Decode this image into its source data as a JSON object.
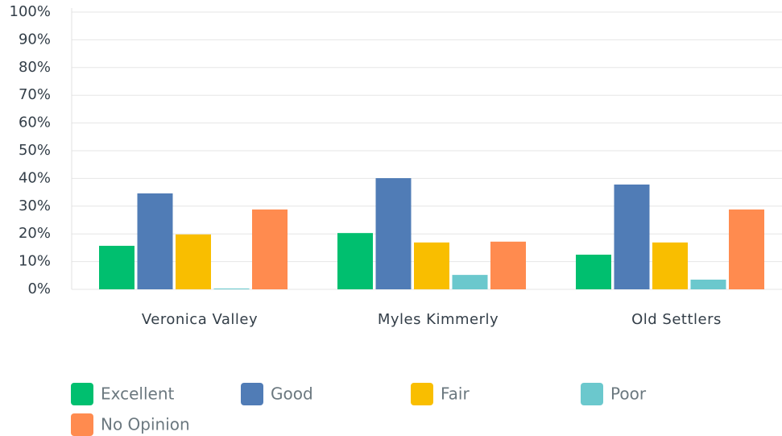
{
  "chart_data": {
    "type": "bar",
    "categories": [
      "Veronica Valley",
      "Myles Kimmerly",
      "Old Settlers"
    ],
    "series": [
      {
        "name": "Excellent",
        "color": "#00bf6f",
        "values": [
          15.7,
          20.3,
          12.5
        ]
      },
      {
        "name": "Good",
        "color": "#507cb6",
        "values": [
          34.6,
          40.1,
          37.8
        ]
      },
      {
        "name": "Fair",
        "color": "#f9be00",
        "values": [
          19.8,
          16.9,
          16.9
        ]
      },
      {
        "name": "Poor",
        "color": "#6bc8cd",
        "values": [
          0.3,
          5.2,
          3.5
        ]
      },
      {
        "name": "No Opinion",
        "color": "#ff8b4f",
        "values": [
          28.8,
          17.2,
          28.8
        ]
      }
    ],
    "ylim": [
      0,
      100
    ],
    "yticks": [
      {
        "value": 0,
        "label": "0%"
      },
      {
        "value": 10,
        "label": "10%"
      },
      {
        "value": 20,
        "label": "20%"
      },
      {
        "value": 30,
        "label": "30%"
      },
      {
        "value": 40,
        "label": "40%"
      },
      {
        "value": 50,
        "label": "50%"
      },
      {
        "value": 60,
        "label": "60%"
      },
      {
        "value": 70,
        "label": "70%"
      },
      {
        "value": 80,
        "label": "80%"
      },
      {
        "value": 90,
        "label": "90%"
      },
      {
        "value": 100,
        "label": "100%"
      }
    ],
    "grid": true
  }
}
